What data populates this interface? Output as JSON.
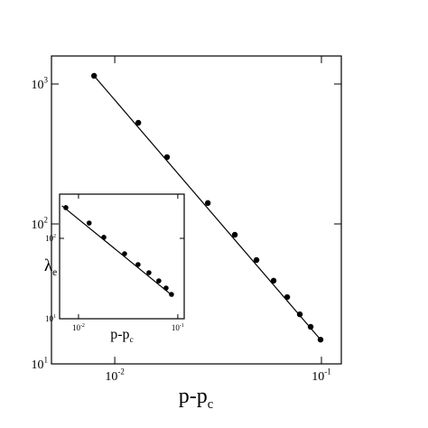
{
  "chart_data": [
    {
      "type": "scatter",
      "log_x": true,
      "log_y": true,
      "x_label": "p-p",
      "x_label_sub": "c",
      "xlim": [
        0.00494,
        0.1248
      ],
      "ylim": [
        10,
        1585
      ],
      "xticks": [
        {
          "value": 0.01,
          "label": "10",
          "exponent": "-2"
        },
        {
          "value": 0.1,
          "label": "10",
          "exponent": "-1"
        }
      ],
      "yticks": [
        {
          "value": 10,
          "label": "10",
          "exponent": "1"
        },
        {
          "value": 100,
          "label": "10",
          "exponent": "2"
        },
        {
          "value": 1000,
          "label": "10",
          "exponent": "3"
        }
      ],
      "series": [
        {
          "mode": "markers",
          "color": "#000000",
          "x": [
            0.00794,
            0.013,
            0.0179,
            0.0282,
            0.0381,
            0.0485,
            0.0587,
            0.0683,
            0.0786,
            0.0887,
            0.099
          ],
          "values": [
            1143,
            528,
            300,
            141,
            83.7,
            55.2,
            39.3,
            30.0,
            22.6,
            18.4,
            14.9
          ]
        },
        {
          "mode": "line",
          "color": "#000000",
          "x": [
            0.00794,
            0.099
          ],
          "values": [
            1143,
            14.9
          ]
        }
      ]
    },
    {
      "type": "scatter",
      "log_x": true,
      "log_y": true,
      "x_label": "p-p",
      "x_label_sub": "c",
      "y_label": "λ",
      "y_label_sub": "e",
      "xlim": [
        0.00645,
        0.116
      ],
      "ylim": [
        10,
        355
      ],
      "xticks": [
        {
          "value": 0.01,
          "label": "10",
          "exponent": "-2"
        },
        {
          "value": 0.1,
          "label": "10",
          "exponent": "-1"
        }
      ],
      "yticks": [
        {
          "value": 10,
          "label": "10",
          "exponent": "1"
        },
        {
          "value": 100,
          "label": "10",
          "exponent": "2"
        }
      ],
      "series": [
        {
          "mode": "markers",
          "color": "#000000",
          "x": [
            0.00746,
            0.0128,
            0.018,
            0.0291,
            0.0398,
            0.0512,
            0.0644,
            0.0762,
            0.0864
          ],
          "values": [
            241,
            155,
            103,
            64.4,
            47.2,
            37.4,
            29.6,
            24.1,
            20.1
          ]
        },
        {
          "mode": "line",
          "color": "#000000",
          "x": [
            0.0068,
            0.09
          ],
          "values": [
            255,
            19
          ]
        }
      ]
    }
  ]
}
